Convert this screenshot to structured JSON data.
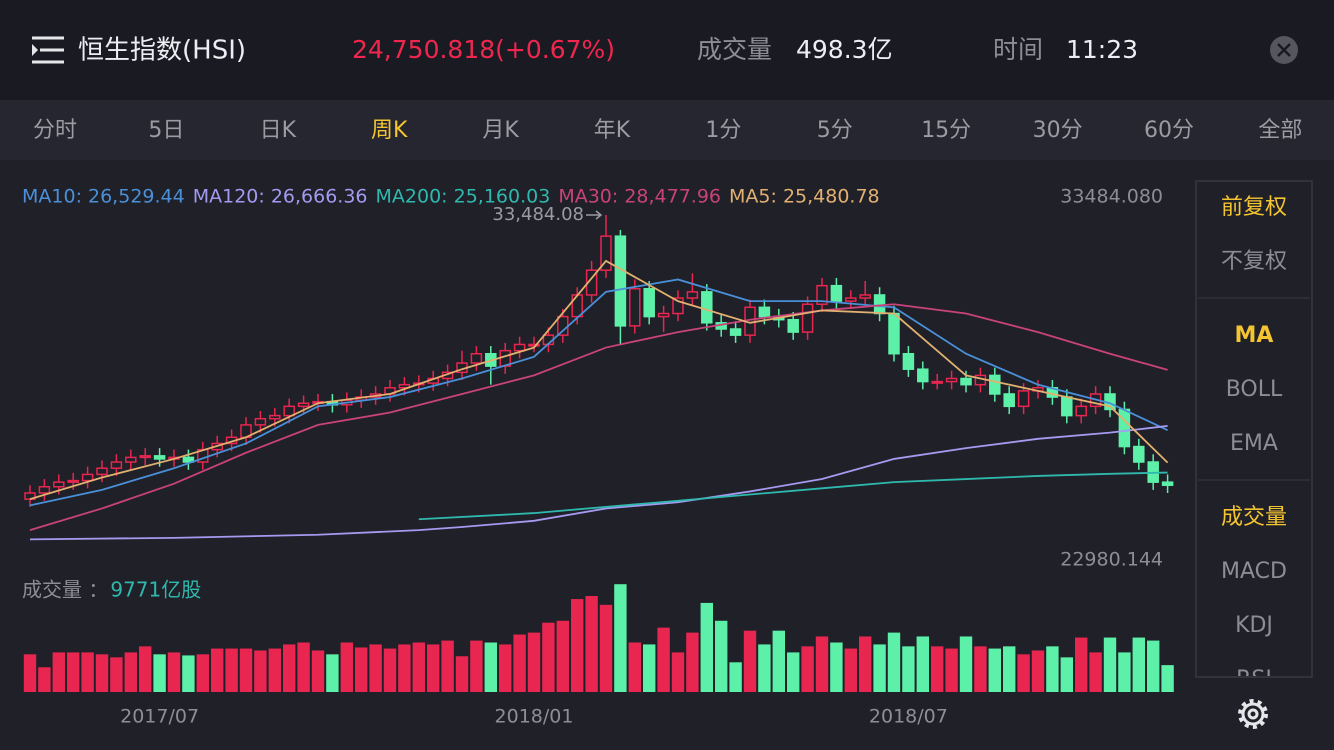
{
  "header": {
    "title": "恒生指数(HSI)",
    "price": "24,750.818(+0.67%)",
    "volume_label": "成交量",
    "volume": "498.3亿",
    "time_label": "时间",
    "time": "11:23"
  },
  "tabs": {
    "items": [
      "分时",
      "5日",
      "日K",
      "周K",
      "月K",
      "年K",
      "1分",
      "5分",
      "15分",
      "30分",
      "60分",
      "全部"
    ],
    "active": 3
  },
  "sidebar": {
    "groups": [
      [
        "前复权",
        "不复权"
      ],
      [
        "MA",
        "BOLL",
        "EMA"
      ],
      [
        "成交量",
        "MACD",
        "KDJ",
        "RSI"
      ]
    ],
    "selected": [
      0,
      0,
      0
    ]
  },
  "chart_data": [
    {
      "type": "candlestick",
      "up_color": "#e8264f",
      "down_color": "#5cf0a8",
      "max_label": "33,484.08",
      "ylim": [
        22980.144,
        33484.08
      ],
      "yticks": [
        {
          "value": 33484.08,
          "label": "33484.080"
        },
        {
          "value": 22980.144,
          "label": "22980.144"
        }
      ],
      "open": [
        24300,
        24500,
        24700,
        24850,
        24900,
        25100,
        25300,
        25500,
        25650,
        25700,
        25600,
        25650,
        25500,
        25900,
        26100,
        26300,
        26700,
        26900,
        27000,
        27300,
        27400,
        27450,
        27350,
        27500,
        27600,
        27700,
        27900,
        28000,
        28050,
        28200,
        28400,
        28700,
        29000,
        28600,
        29100,
        29300,
        29300,
        29600,
        30200,
        30900,
        31700,
        32800,
        29900,
        31100,
        30200,
        30300,
        30800,
        31000,
        30000,
        29800,
        29600,
        30500,
        30200,
        30100,
        29700,
        30600,
        31200,
        30700,
        30800,
        30900,
        30300,
        29000,
        28500,
        28100,
        28100,
        28200,
        28000,
        28300,
        27700,
        27300,
        27800,
        27900,
        27600,
        27000,
        27300,
        27700,
        27200,
        26000,
        25500,
        24850
      ],
      "high": [
        24750,
        24950,
        25100,
        25150,
        25350,
        25550,
        25750,
        25900,
        25950,
        25950,
        25900,
        25900,
        26150,
        26350,
        26550,
        26950,
        27150,
        27250,
        27550,
        27650,
        27700,
        27700,
        27750,
        27850,
        27950,
        28150,
        28250,
        28300,
        28450,
        28650,
        29100,
        29250,
        29250,
        29350,
        29550,
        29550,
        29850,
        30450,
        31150,
        32000,
        33484.08,
        33000,
        31400,
        31350,
        30550,
        31050,
        31600,
        31250,
        30250,
        30050,
        30750,
        30750,
        30450,
        30350,
        30850,
        31450,
        31450,
        31050,
        31350,
        31150,
        30550,
        29250,
        28750,
        28350,
        28450,
        28450,
        28550,
        28550,
        27950,
        28050,
        28150,
        28150,
        27850,
        27550,
        27950,
        27950,
        27450,
        26250,
        25750,
        25100
      ],
      "low": [
        24050,
        24250,
        24450,
        24600,
        24650,
        24850,
        25050,
        25250,
        25400,
        25350,
        25350,
        25250,
        25250,
        25650,
        25850,
        26050,
        26450,
        26650,
        26750,
        27050,
        27150,
        27100,
        27100,
        27250,
        27350,
        27450,
        27650,
        27750,
        27800,
        27950,
        28150,
        28450,
        28000,
        28350,
        28850,
        29050,
        29050,
        29350,
        29950,
        30650,
        31450,
        29300,
        29650,
        29950,
        29700,
        30050,
        30550,
        29750,
        29550,
        29350,
        29350,
        29950,
        29850,
        29450,
        29450,
        30350,
        30450,
        30450,
        30550,
        30050,
        28750,
        28250,
        27850,
        27850,
        27850,
        27750,
        27750,
        27450,
        27050,
        27050,
        27550,
        27350,
        26750,
        26750,
        27050,
        26950,
        25750,
        25250,
        24600,
        24500
      ],
      "close": [
        24500,
        24700,
        24850,
        24900,
        25100,
        25300,
        25500,
        25650,
        25700,
        25600,
        25650,
        25500,
        25900,
        26100,
        26300,
        26700,
        26900,
        27000,
        27300,
        27400,
        27450,
        27350,
        27500,
        27600,
        27700,
        27900,
        28000,
        28050,
        28200,
        28400,
        28700,
        29000,
        28600,
        29100,
        29300,
        29300,
        29600,
        30200,
        30900,
        31700,
        32800,
        29900,
        31100,
        30200,
        30300,
        30800,
        31000,
        30000,
        29800,
        29600,
        30500,
        30200,
        30100,
        29700,
        30600,
        31200,
        30700,
        30800,
        30900,
        30300,
        29000,
        28500,
        28100,
        28100,
        28200,
        28000,
        28300,
        27700,
        27300,
        27800,
        27900,
        27600,
        27000,
        27300,
        27700,
        27200,
        26000,
        25500,
        24850,
        24750
      ],
      "series": [
        {
          "name": "MA10: 26,529.44",
          "color": "#4a90d9",
          "x": [
            0,
            5,
            10,
            15,
            20,
            25,
            30,
            35,
            40,
            45,
            50,
            55,
            60,
            65,
            70,
            75,
            79
          ],
          "values": [
            24100,
            24600,
            25300,
            26100,
            27300,
            27600,
            28200,
            28900,
            31000,
            31400,
            30700,
            30700,
            30500,
            29000,
            28000,
            27400,
            26529.44
          ]
        },
        {
          "name": "MA120: 26,666.36",
          "color": "#a49af0",
          "x": [
            0,
            10,
            20,
            27,
            30,
            35,
            40,
            45,
            50,
            55,
            60,
            65,
            70,
            75,
            79
          ],
          "values": [
            23000,
            23050,
            23150,
            23300,
            23400,
            23600,
            24000,
            24200,
            24550,
            24950,
            25600,
            25950,
            26250,
            26450,
            26666.36
          ]
        },
        {
          "name": "MA200: 25,160.03",
          "color": "#2fb9ae",
          "x": [
            27,
            35,
            40,
            45,
            50,
            55,
            60,
            65,
            70,
            75,
            79
          ],
          "values": [
            23650,
            23850,
            24050,
            24250,
            24450,
            24650,
            24850,
            24950,
            25050,
            25120,
            25160.03
          ]
        },
        {
          "name": "MA30: 28,477.96",
          "color": "#c9437a",
          "x": [
            0,
            5,
            10,
            15,
            20,
            25,
            30,
            35,
            40,
            45,
            50,
            55,
            60,
            65,
            70,
            75,
            79
          ],
          "values": [
            23300,
            24000,
            24800,
            25800,
            26700,
            27100,
            27700,
            28300,
            29200,
            29700,
            30100,
            30400,
            30600,
            30300,
            29700,
            29000,
            28477.96
          ]
        },
        {
          "name": "MA5: 25,480.78",
          "color": "#e2b070",
          "x": [
            0,
            5,
            10,
            15,
            20,
            25,
            30,
            35,
            40,
            45,
            50,
            55,
            60,
            65,
            70,
            75,
            79
          ],
          "values": [
            24300,
            25000,
            25600,
            26300,
            27400,
            27700,
            28500,
            29200,
            32000,
            30700,
            30000,
            30400,
            30300,
            28300,
            27800,
            27300,
            25480.78
          ]
        }
      ]
    },
    {
      "type": "bar",
      "title": "成交量 ：",
      "current_label": "9771亿股",
      "ylim": [
        0,
        40000
      ],
      "categories": [
        null,
        null,
        null,
        null,
        null,
        null,
        null,
        null,
        null,
        "2017/07",
        null,
        null,
        null,
        null,
        null,
        null,
        null,
        null,
        null,
        null,
        null,
        null,
        null,
        null,
        null,
        null,
        null,
        null,
        null,
        null,
        null,
        null,
        null,
        null,
        null,
        "2018/01",
        null,
        null,
        null,
        null,
        null,
        null,
        null,
        null,
        null,
        null,
        null,
        null,
        null,
        null,
        null,
        null,
        null,
        null,
        null,
        null,
        null,
        null,
        null,
        null,
        null,
        "2018/07",
        null,
        null,
        null,
        null,
        null,
        null,
        null,
        null,
        null,
        null,
        null,
        null,
        null,
        null,
        null,
        null,
        null,
        null
      ],
      "values": [
        13700,
        9000,
        14400,
        14400,
        14400,
        13700,
        12600,
        14400,
        16600,
        13700,
        14400,
        13300,
        13700,
        15800,
        15800,
        15800,
        15100,
        15800,
        17300,
        18000,
        15100,
        13700,
        18000,
        16200,
        17300,
        15800,
        17300,
        18000,
        17300,
        18700,
        13000,
        18700,
        18000,
        17300,
        20900,
        21600,
        25200,
        25900,
        33800,
        34900,
        31700,
        39200,
        18000,
        17300,
        23400,
        14400,
        21600,
        32400,
        25900,
        10800,
        22300,
        17300,
        22300,
        14400,
        16600,
        20200,
        18000,
        15800,
        20200,
        17300,
        21600,
        16600,
        20200,
        16600,
        15800,
        20200,
        16600,
        15800,
        16600,
        13700,
        15100,
        16600,
        12600,
        19800,
        14400,
        19800,
        14400,
        19800,
        18700,
        9771
      ]
    }
  ]
}
